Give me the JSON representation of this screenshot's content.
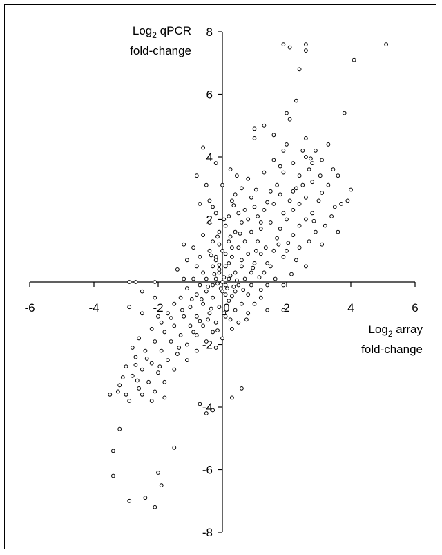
{
  "chart_data": {
    "type": "scatter",
    "title": "",
    "xlabel": {
      "line1_prefix": "Log",
      "line1_sub": "2",
      "line1_suffix": " array",
      "line2": "fold-change"
    },
    "ylabel": {
      "line1_prefix": "Log",
      "line1_sub": "2",
      "line1_suffix": " qPCR",
      "line2": "fold-change"
    },
    "xlim": [
      -6,
      6
    ],
    "ylim": [
      -8,
      8
    ],
    "xticks": [
      -6,
      -4,
      -2,
      0,
      2,
      4,
      6
    ],
    "yticks": [
      -8,
      -6,
      -4,
      -2,
      0,
      2,
      4,
      6,
      8
    ],
    "xtick_labels": [
      "-6",
      "-4",
      "-2",
      "0",
      "2",
      "4",
      "6"
    ],
    "ytick_labels": [
      "-8",
      "-6",
      "-4",
      "-2",
      "0",
      "2",
      "4",
      "6",
      "8"
    ],
    "grid": false,
    "marker": "open-circle",
    "colors": {
      "point_edge": "#000000",
      "point_fill": "#ffffff",
      "axis": "#000000"
    },
    "points": [
      [
        5.1,
        7.6
      ],
      [
        4.1,
        7.1
      ],
      [
        2.6,
        7.6
      ],
      [
        2.6,
        7.4
      ],
      [
        2.1,
        7.5
      ],
      [
        1.9,
        7.6
      ],
      [
        2.4,
        6.8
      ],
      [
        2.3,
        5.8
      ],
      [
        2.0,
        5.4
      ],
      [
        2.1,
        5.2
      ],
      [
        3.8,
        5.4
      ],
      [
        1.6,
        4.7
      ],
      [
        1.3,
        5.0
      ],
      [
        1.0,
        4.9
      ],
      [
        2.6,
        4.6
      ],
      [
        2.0,
        4.4
      ],
      [
        3.3,
        4.4
      ],
      [
        2.9,
        4.2
      ],
      [
        1.9,
        4.2
      ],
      [
        2.5,
        4.2
      ],
      [
        2.6,
        4.0
      ],
      [
        3.1,
        3.9
      ],
      [
        2.8,
        3.8
      ],
      [
        2.2,
        3.8
      ],
      [
        1.6,
        3.9
      ],
      [
        1.8,
        3.7
      ],
      [
        1.9,
        3.5
      ],
      [
        2.7,
        3.6
      ],
      [
        2.4,
        3.4
      ],
      [
        3.6,
        3.4
      ],
      [
        1.3,
        3.5
      ],
      [
        2.8,
        3.2
      ],
      [
        3.3,
        3.1
      ],
      [
        1.7,
        3.1
      ],
      [
        2.3,
        3.0
      ],
      [
        1.8,
        2.8
      ],
      [
        1.5,
        2.9
      ],
      [
        2.1,
        2.6
      ],
      [
        2.6,
        2.7
      ],
      [
        3.0,
        2.6
      ],
      [
        2.4,
        2.5
      ],
      [
        1.6,
        2.5
      ],
      [
        3.5,
        2.4
      ],
      [
        3.7,
        2.5
      ],
      [
        2.2,
        2.3
      ],
      [
        2.8,
        2.2
      ],
      [
        1.9,
        2.2
      ],
      [
        1.3,
        2.3
      ],
      [
        1.1,
        2.1
      ],
      [
        2.6,
        2.0
      ],
      [
        2.0,
        2.0
      ],
      [
        1.5,
        1.9
      ],
      [
        3.2,
        1.8
      ],
      [
        2.9,
        1.6
      ],
      [
        3.6,
        1.6
      ],
      [
        2.4,
        1.8
      ],
      [
        1.8,
        1.7
      ],
      [
        1.2,
        1.7
      ],
      [
        1.7,
        1.4
      ],
      [
        2.2,
        1.5
      ],
      [
        2.7,
        1.3
      ],
      [
        2.4,
        1.1
      ],
      [
        3.1,
        1.2
      ],
      [
        2.0,
        1.0
      ],
      [
        1.6,
        1.0
      ],
      [
        1.9,
        0.8
      ],
      [
        2.3,
        0.7
      ],
      [
        2.6,
        0.5
      ],
      [
        1.4,
        0.6
      ],
      [
        1.0,
        4.6
      ],
      [
        0.8,
        3.3
      ],
      [
        0.6,
        3.0
      ],
      [
        0.4,
        2.8
      ],
      [
        -0.4,
        2.6
      ],
      [
        -0.5,
        3.1
      ],
      [
        -0.8,
        3.4
      ],
      [
        -0.2,
        3.8
      ],
      [
        0.0,
        3.1
      ],
      [
        0.3,
        2.6
      ],
      [
        0.9,
        2.7
      ],
      [
        1.0,
        2.4
      ],
      [
        0.7,
        2.3
      ],
      [
        0.5,
        2.2
      ],
      [
        0.2,
        2.1
      ],
      [
        -0.2,
        2.2
      ],
      [
        -0.7,
        2.5
      ],
      [
        -0.4,
        1.9
      ],
      [
        0.1,
        1.8
      ],
      [
        0.6,
        1.9
      ],
      [
        1.2,
        1.9
      ],
      [
        0.9,
        1.6
      ],
      [
        0.4,
        1.6
      ],
      [
        -0.1,
        1.6
      ],
      [
        -0.6,
        1.5
      ],
      [
        -0.3,
        1.3
      ],
      [
        0.2,
        1.3
      ],
      [
        0.7,
        1.3
      ],
      [
        1.1,
        1.3
      ],
      [
        0.5,
        1.1
      ],
      [
        0.0,
        1.0
      ],
      [
        -0.4,
        1.0
      ],
      [
        -0.9,
        1.1
      ],
      [
        -1.2,
        1.2
      ],
      [
        -0.7,
        0.8
      ],
      [
        -0.2,
        0.8
      ],
      [
        0.3,
        0.8
      ],
      [
        0.8,
        0.9
      ],
      [
        1.2,
        0.9
      ],
      [
        1.0,
        0.6
      ],
      [
        0.6,
        0.5
      ],
      [
        0.1,
        0.5
      ],
      [
        -0.3,
        0.5
      ],
      [
        -0.8,
        0.5
      ],
      [
        -1.1,
        0.7
      ],
      [
        -1.4,
        0.4
      ],
      [
        -0.6,
        0.3
      ],
      [
        -0.1,
        0.3
      ],
      [
        0.4,
        0.3
      ],
      [
        0.9,
        0.3
      ],
      [
        1.3,
        0.3
      ],
      [
        1.5,
        0.5
      ],
      [
        0.7,
        0.1
      ],
      [
        0.2,
        0.1
      ],
      [
        -0.2,
        0.1
      ],
      [
        -0.5,
        0.1
      ],
      [
        -0.9,
        0.1
      ],
      [
        -1.2,
        0.1
      ],
      [
        -0.7,
        -0.1
      ],
      [
        -0.3,
        -0.1
      ],
      [
        0.1,
        -0.1
      ],
      [
        0.5,
        -0.1
      ],
      [
        0.9,
        -0.1
      ],
      [
        1.4,
        -0.1
      ],
      [
        1.9,
        -0.1
      ],
      [
        -1.1,
        -0.2
      ],
      [
        -0.5,
        -0.3
      ],
      [
        0.0,
        -0.3
      ],
      [
        0.4,
        -0.3
      ],
      [
        0.8,
        -0.4
      ],
      [
        1.2,
        -0.5
      ],
      [
        -0.8,
        -0.4
      ],
      [
        -1.3,
        -0.5
      ],
      [
        -0.3,
        -0.5
      ],
      [
        0.2,
        -0.6
      ],
      [
        0.6,
        -0.7
      ],
      [
        1.0,
        -0.7
      ],
      [
        -0.6,
        -0.7
      ],
      [
        -1.0,
        -0.8
      ],
      [
        -1.5,
        -0.7
      ],
      [
        -0.1,
        -0.8
      ],
      [
        0.4,
        -0.9
      ],
      [
        0.8,
        -1.0
      ],
      [
        1.4,
        -0.9
      ],
      [
        1.9,
        -0.9
      ],
      [
        -0.4,
        -1.0
      ],
      [
        -0.8,
        -1.1
      ],
      [
        -1.2,
        -1.1
      ],
      [
        -1.7,
        -1.0
      ],
      [
        0.1,
        -1.1
      ],
      [
        0.5,
        -1.3
      ],
      [
        -0.2,
        -1.3
      ],
      [
        -0.6,
        -1.4
      ],
      [
        -1.0,
        -1.4
      ],
      [
        -1.5,
        -1.4
      ],
      [
        -1.9,
        -1.3
      ],
      [
        0.3,
        -1.5
      ],
      [
        -0.3,
        -1.6
      ],
      [
        -0.8,
        -1.7
      ],
      [
        -1.3,
        -1.7
      ],
      [
        -1.8,
        -1.6
      ],
      [
        -2.2,
        -1.5
      ],
      [
        0.0,
        -1.8
      ],
      [
        -0.5,
        -1.9
      ],
      [
        -1.1,
        -2.0
      ],
      [
        -1.6,
        -1.9
      ],
      [
        -2.1,
        -1.9
      ],
      [
        -2.6,
        -1.8
      ],
      [
        -0.2,
        -2.1
      ],
      [
        -0.8,
        -2.2
      ],
      [
        -1.4,
        -2.3
      ],
      [
        -1.9,
        -2.2
      ],
      [
        -2.4,
        -2.2
      ],
      [
        -2.8,
        -2.1
      ],
      [
        -1.1,
        -2.5
      ],
      [
        -1.7,
        -2.5
      ],
      [
        -2.2,
        -2.6
      ],
      [
        -2.7,
        -2.4
      ],
      [
        -3.0,
        -2.7
      ],
      [
        -1.5,
        -2.8
      ],
      [
        -2.0,
        -2.9
      ],
      [
        -2.5,
        -2.8
      ],
      [
        -2.8,
        -3.0
      ],
      [
        -1.8,
        -3.2
      ],
      [
        -2.3,
        -3.2
      ],
      [
        -2.6,
        -3.4
      ],
      [
        -3.2,
        -3.3
      ],
      [
        -2.1,
        -3.5
      ],
      [
        -2.5,
        -3.6
      ],
      [
        -3.0,
        -3.6
      ],
      [
        -3.5,
        -3.6
      ],
      [
        -2.9,
        -3.8
      ],
      [
        -2.2,
        -3.8
      ],
      [
        -1.8,
        -3.7
      ],
      [
        -0.7,
        -3.9
      ],
      [
        -0.3,
        -4.1
      ],
      [
        -0.5,
        -4.2
      ],
      [
        0.3,
        -3.7
      ],
      [
        0.6,
        -3.4
      ],
      [
        -3.2,
        -4.7
      ],
      [
        -3.4,
        -5.4
      ],
      [
        -1.5,
        -5.3
      ],
      [
        -3.4,
        -6.2
      ],
      [
        -2.0,
        -6.1
      ],
      [
        -1.9,
        -6.5
      ],
      [
        -2.9,
        -7.0
      ],
      [
        -2.4,
        -6.9
      ],
      [
        -2.1,
        -7.2
      ],
      [
        -2.9,
        0.0
      ],
      [
        -2.7,
        0.0
      ],
      [
        -2.1,
        0.0
      ],
      [
        -2.5,
        -0.3
      ],
      [
        -2.1,
        -0.5
      ],
      [
        -2.9,
        -0.8
      ],
      [
        -2.5,
        -1.0
      ],
      [
        -2.0,
        -1.1
      ],
      [
        -0.1,
        0.4
      ],
      [
        0.2,
        0.6
      ],
      [
        -0.2,
        0.7
      ],
      [
        0.1,
        0.9
      ],
      [
        0.3,
        1.1
      ],
      [
        -0.1,
        1.2
      ],
      [
        0.0,
        0.0
      ],
      [
        0.15,
        -0.2
      ],
      [
        -0.15,
        -0.05
      ],
      [
        0.25,
        0.2
      ],
      [
        -0.25,
        0.25
      ],
      [
        0.35,
        -0.15
      ],
      [
        0.05,
        0.15
      ],
      [
        -0.05,
        -0.2
      ],
      [
        0.45,
        0.05
      ],
      [
        -0.45,
        -0.15
      ],
      [
        0.1,
        -0.4
      ],
      [
        -0.1,
        0.55
      ],
      [
        0.6,
        0.7
      ],
      [
        -0.35,
        0.85
      ],
      [
        0.25,
        1.45
      ],
      [
        -0.15,
        1.45
      ],
      [
        0.55,
        1.55
      ],
      [
        0.05,
        2.0
      ],
      [
        -0.3,
        2.4
      ],
      [
        0.35,
        2.45
      ],
      [
        0.8,
        2.0
      ],
      [
        1.05,
        1.0
      ],
      [
        1.35,
        1.1
      ],
      [
        0.95,
        0.45
      ],
      [
        1.15,
        0.15
      ],
      [
        0.65,
        -0.25
      ],
      [
        0.3,
        -0.45
      ],
      [
        -0.65,
        -0.55
      ],
      [
        -0.95,
        -0.55
      ],
      [
        -0.35,
        -0.85
      ],
      [
        0.05,
        -1.0
      ],
      [
        -0.45,
        -1.2
      ],
      [
        0.25,
        -1.2
      ],
      [
        -0.15,
        -1.55
      ],
      [
        -0.7,
        -1.25
      ],
      [
        -1.25,
        -0.9
      ],
      [
        -1.6,
        -1.15
      ],
      [
        -0.9,
        -1.6
      ],
      [
        -1.35,
        -2.1
      ],
      [
        -2.35,
        -2.45
      ],
      [
        -2.7,
        -2.65
      ],
      [
        -3.1,
        -3.05
      ],
      [
        -1.95,
        -2.7
      ],
      [
        -2.65,
        -3.15
      ],
      [
        -3.25,
        -3.5
      ],
      [
        0.75,
        -1.2
      ],
      [
        1.2,
        -0.25
      ],
      [
        1.65,
        0.1
      ],
      [
        2.15,
        0.25
      ],
      [
        1.75,
        1.2
      ],
      [
        2.05,
        1.25
      ],
      [
        2.85,
        1.95
      ],
      [
        3.4,
        2.1
      ],
      [
        3.9,
        2.6
      ],
      [
        4.0,
        2.95
      ],
      [
        3.1,
        2.85
      ],
      [
        2.2,
        2.9
      ],
      [
        2.5,
        3.1
      ],
      [
        1.4,
        2.55
      ],
      [
        1.05,
        2.95
      ],
      [
        0.45,
        3.4
      ],
      [
        0.25,
        3.6
      ],
      [
        -0.6,
        4.3
      ],
      [
        2.75,
        3.95
      ],
      [
        3.05,
        3.4
      ],
      [
        3.45,
        3.6
      ]
    ]
  }
}
